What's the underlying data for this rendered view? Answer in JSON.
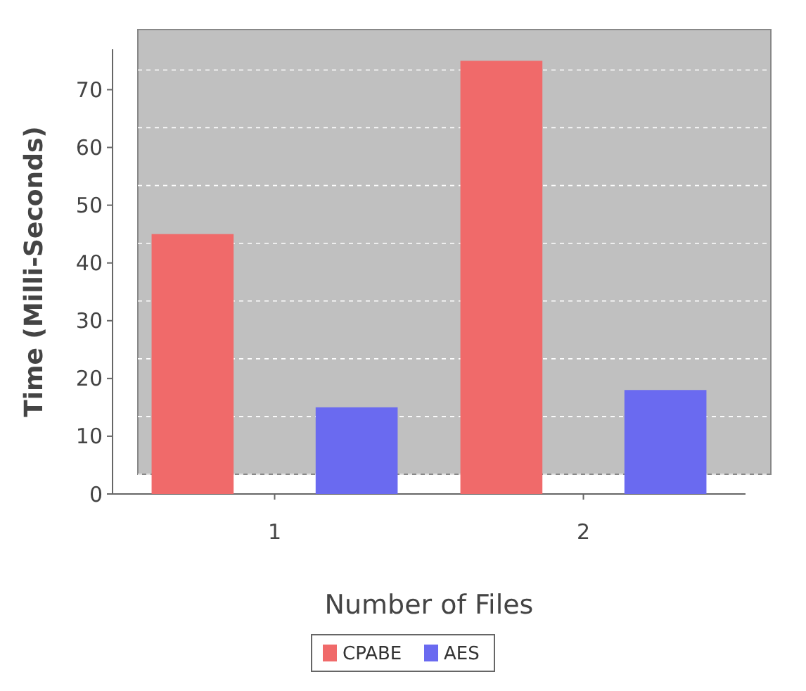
{
  "chart_data": {
    "type": "bar",
    "xlabel": "Number of Files",
    "ylabel": "Time (Milli-Seconds)",
    "categories": [
      "1",
      "2"
    ],
    "series": [
      {
        "name": "CPABE",
        "color": "#f06a6a",
        "values": [
          45,
          75
        ]
      },
      {
        "name": "AES",
        "color": "#6a6af0",
        "values": [
          15,
          18
        ]
      }
    ],
    "ylim": [
      0,
      77
    ],
    "yticks": [
      0,
      10,
      20,
      30,
      40,
      50,
      60,
      70
    ],
    "grid": "y",
    "legend": "bottom"
  }
}
